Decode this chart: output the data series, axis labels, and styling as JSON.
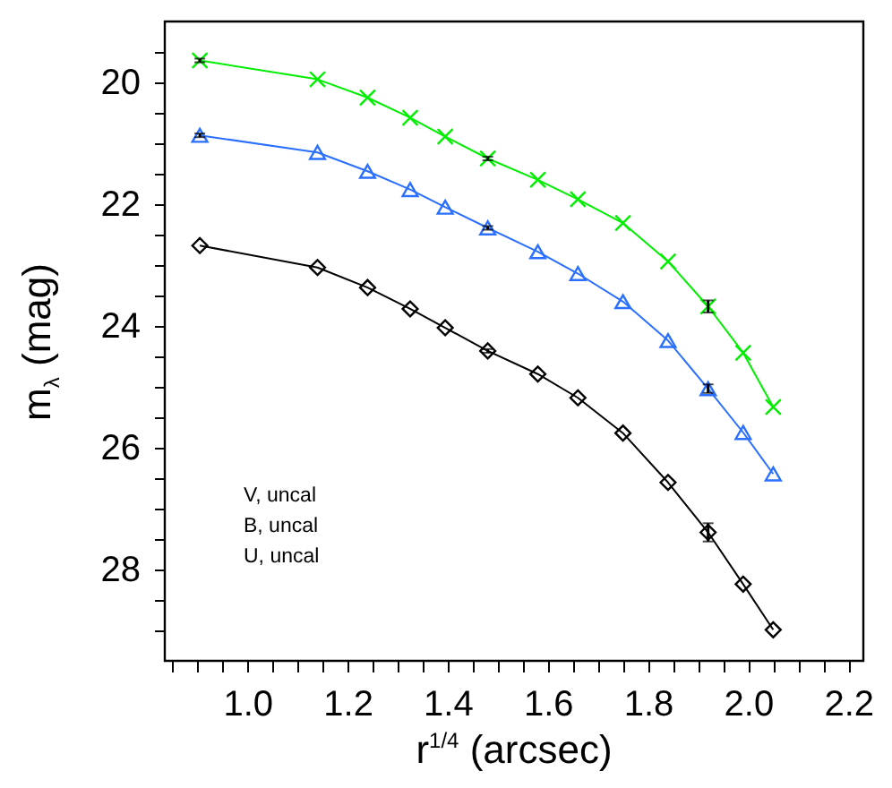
{
  "chart_data": {
    "type": "line",
    "xlabel": "r$^{1/4}$ (arcsec)",
    "ylabel": "m$_{λ}$ (mag)",
    "x": [
      0.905,
      1.14,
      1.24,
      1.325,
      1.395,
      1.48,
      1.58,
      1.66,
      1.75,
      1.84,
      1.92,
      1.99,
      2.05
    ],
    "series": [
      {
        "color": "#00ee00",
        "marker": "cross",
        "values": [
          19.64,
          19.95,
          20.25,
          20.58,
          20.89,
          21.25,
          21.6,
          21.92,
          22.31,
          22.94,
          23.68,
          24.44,
          25.33
        ],
        "errors": [
          0.03,
          null,
          null,
          null,
          null,
          0.03,
          null,
          null,
          null,
          null,
          0.1,
          null,
          null
        ]
      },
      {
        "color": "#2a6fff",
        "marker": "triangle",
        "values": [
          20.87,
          21.15,
          21.46,
          21.76,
          22.05,
          22.39,
          22.78,
          23.14,
          23.6,
          24.24,
          25.03,
          25.75,
          26.43
        ],
        "errors": [
          0.03,
          null,
          null,
          null,
          null,
          0.03,
          null,
          null,
          null,
          null,
          0.07,
          null,
          null
        ]
      },
      {
        "color": "#000000",
        "marker": "diamond",
        "values": [
          22.68,
          23.04,
          23.37,
          23.72,
          24.03,
          24.41,
          24.79,
          25.18,
          25.76,
          26.57,
          27.39,
          28.24,
          28.99
        ],
        "errors": [
          null,
          null,
          null,
          null,
          null,
          0.03,
          null,
          null,
          null,
          null,
          0.15,
          null,
          null
        ]
      }
    ],
    "xlim": [
      0.835,
      2.23
    ],
    "ylim": [
      29.5,
      19.0
    ],
    "xticks": [
      {
        "value": 0.85,
        "label": null
      },
      {
        "value": 0.9,
        "label": null
      },
      {
        "value": 0.95,
        "label": null
      },
      {
        "value": 1.0,
        "label": "1.0"
      },
      {
        "value": 1.05,
        "label": null
      },
      {
        "value": 1.1,
        "label": null
      },
      {
        "value": 1.15,
        "label": null
      },
      {
        "value": 1.2,
        "label": "1.2"
      },
      {
        "value": 1.25,
        "label": null
      },
      {
        "value": 1.3,
        "label": null
      },
      {
        "value": 1.35,
        "label": null
      },
      {
        "value": 1.4,
        "label": "1.4"
      },
      {
        "value": 1.45,
        "label": null
      },
      {
        "value": 1.5,
        "label": null
      },
      {
        "value": 1.55,
        "label": null
      },
      {
        "value": 1.6,
        "label": "1.6"
      },
      {
        "value": 1.65,
        "label": null
      },
      {
        "value": 1.7,
        "label": null
      },
      {
        "value": 1.75,
        "label": null
      },
      {
        "value": 1.8,
        "label": "1.8"
      },
      {
        "value": 1.85,
        "label": null
      },
      {
        "value": 1.9,
        "label": null
      },
      {
        "value": 1.95,
        "label": null
      },
      {
        "value": 2.0,
        "label": "2.0"
      },
      {
        "value": 2.05,
        "label": null
      },
      {
        "value": 2.1,
        "label": null
      },
      {
        "value": 2.15,
        "label": null
      },
      {
        "value": 2.2,
        "label": "2.2"
      }
    ],
    "yticks": [
      {
        "value": 19.5,
        "label": null
      },
      20,
      {
        "value": 20.5,
        "label": null
      },
      {
        "value": 21,
        "label": null
      },
      {
        "value": 21.5,
        "label": null
      },
      22,
      {
        "value": 22.5,
        "label": null
      },
      {
        "value": 23,
        "label": null
      },
      {
        "value": 23.5,
        "label": null
      },
      24,
      {
        "value": 24.5,
        "label": null
      },
      {
        "value": 25,
        "label": null
      },
      {
        "value": 25.5,
        "label": null
      },
      26,
      {
        "value": 26.5,
        "label": null
      },
      {
        "value": 27,
        "label": null
      },
      {
        "value": 27.5,
        "label": null
      },
      28,
      {
        "value": 28.5,
        "label": null
      },
      {
        "value": 29,
        "label": null
      }
    ],
    "line_style": "solid",
    "grid": false,
    "annotations": [
      "V, uncal",
      "B, uncal",
      "U, uncal"
    ]
  }
}
